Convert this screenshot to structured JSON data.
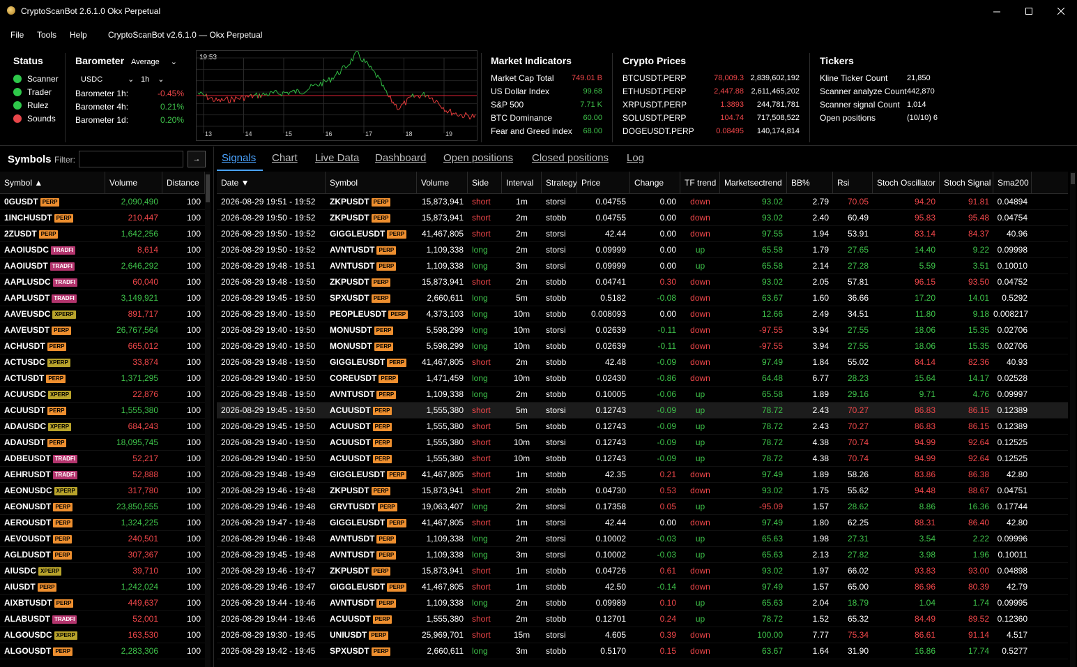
{
  "window": {
    "title": "CryptoScanBot 2.6.1.0 Okx Perpetual"
  },
  "menu": {
    "items": [
      "File",
      "Tools",
      "Help"
    ],
    "subtitle": "CryptoScanBot v2.6.1.0 — Okx Perpetual"
  },
  "status": {
    "title": "Status",
    "items": [
      {
        "label": "Scanner",
        "color": "#2ec84a"
      },
      {
        "label": "Trader",
        "color": "#2ec84a"
      },
      {
        "label": "Rulez",
        "color": "#2ec84a"
      },
      {
        "label": "Sounds",
        "color": "#e8464a"
      }
    ]
  },
  "barometer": {
    "title": "Barometer",
    "mode": "Average",
    "quote": "USDC",
    "interval": "1h",
    "rows": [
      {
        "label": "Barometer 1h:",
        "value": "-0.45%",
        "color": "red"
      },
      {
        "label": "Barometer 4h:",
        "value": "0.21%",
        "color": "green"
      },
      {
        "label": "Barometer 1d:",
        "value": "0.20%",
        "color": "green"
      }
    ]
  },
  "spark": {
    "time": "19:53",
    "days": [
      "13",
      "14",
      "15",
      "16",
      "17",
      "18",
      "19"
    ]
  },
  "market": {
    "title": "Market Indicators",
    "rows": [
      {
        "label": "Market Cap Total",
        "value": "749.01 B",
        "color": "red"
      },
      {
        "label": "US Dollar Index",
        "value": "99.68",
        "color": "green"
      },
      {
        "label": "S&P 500",
        "value": "7.71 K",
        "color": "green"
      },
      {
        "label": "BTC Dominance",
        "value": "60.00",
        "color": "green"
      },
      {
        "label": "Fear and Greed index",
        "value": "68.00",
        "color": "green"
      }
    ]
  },
  "prices": {
    "title": "Crypto Prices",
    "rows": [
      {
        "symbol": "BTCUSDT.PERP",
        "price": "78,009.3",
        "color": "red",
        "volume": "2,839,602,192"
      },
      {
        "symbol": "ETHUSDT.PERP",
        "price": "2,447.88",
        "color": "red",
        "volume": "2,611,465,202"
      },
      {
        "symbol": "XRPUSDT.PERP",
        "price": "1.3893",
        "color": "red",
        "volume": "244,781,781"
      },
      {
        "symbol": "SOLUSDT.PERP",
        "price": "104.74",
        "color": "red",
        "volume": "717,508,522"
      },
      {
        "symbol": "DOGEUSDT.PERP",
        "price": "0.08495",
        "color": "red",
        "volume": "140,174,814"
      }
    ]
  },
  "tickers": {
    "title": "Tickers",
    "rows": [
      {
        "label": "Kline Ticker Count",
        "value": "21,850"
      },
      {
        "label": "Scanner analyze Count",
        "value": "442,870"
      },
      {
        "label": "Scanner signal Count",
        "value": "1,014"
      },
      {
        "label": "Open positions",
        "value": "(10/10) 6"
      }
    ]
  },
  "symbols": {
    "title": "Symbols",
    "filter_label": "Filter:",
    "filter_value": "",
    "filter_button": "→",
    "headers": [
      "Symbol ▲",
      "Volume",
      "Distance"
    ],
    "rows": [
      [
        "0GUSDT",
        "PERP",
        "2,090,490",
        "green",
        "100"
      ],
      [
        "1INCHUSDT",
        "PERP",
        "210,447",
        "red",
        "100"
      ],
      [
        "2ZUSDT",
        "PERP",
        "1,642,256",
        "green",
        "100"
      ],
      [
        "AAOIUSDC",
        "TRADFI",
        "8,614",
        "red",
        "100"
      ],
      [
        "AAOIUSDT",
        "TRADFI",
        "2,646,292",
        "green",
        "100"
      ],
      [
        "AAPLUSDC",
        "TRADFI",
        "60,040",
        "red",
        "100"
      ],
      [
        "AAPLUSDT",
        "TRADFI",
        "3,149,921",
        "green",
        "100"
      ],
      [
        "AAVEUSDC",
        "XPERP",
        "891,717",
        "red",
        "100"
      ],
      [
        "AAVEUSDT",
        "PERP",
        "26,767,564",
        "green",
        "100"
      ],
      [
        "ACHUSDT",
        "PERP",
        "665,012",
        "red",
        "100"
      ],
      [
        "ACTUSDC",
        "XPERP",
        "33,874",
        "red",
        "100"
      ],
      [
        "ACTUSDT",
        "PERP",
        "1,371,295",
        "green",
        "100"
      ],
      [
        "ACUUSDC",
        "XPERP",
        "22,876",
        "red",
        "100"
      ],
      [
        "ACUUSDT",
        "PERP",
        "1,555,380",
        "green",
        "100"
      ],
      [
        "ADAUSDC",
        "XPERP",
        "684,243",
        "red",
        "100"
      ],
      [
        "ADAUSDT",
        "PERP",
        "18,095,745",
        "green",
        "100"
      ],
      [
        "ADBEUSDT",
        "TRADFI",
        "52,217",
        "red",
        "100"
      ],
      [
        "AEHRUSDT",
        "TRADFI",
        "52,888",
        "red",
        "100"
      ],
      [
        "AEONUSDC",
        "XPERP",
        "317,780",
        "red",
        "100"
      ],
      [
        "AEONUSDT",
        "PERP",
        "23,850,555",
        "green",
        "100"
      ],
      [
        "AEROUSDT",
        "PERP",
        "1,324,225",
        "green",
        "100"
      ],
      [
        "AEVOUSDT",
        "PERP",
        "240,501",
        "red",
        "100"
      ],
      [
        "AGLDUSDT",
        "PERP",
        "307,367",
        "red",
        "100"
      ],
      [
        "AIUSDC",
        "XPERP",
        "39,710",
        "red",
        "100"
      ],
      [
        "AIUSDT",
        "PERP",
        "1,242,024",
        "green",
        "100"
      ],
      [
        "AIXBTUSDT",
        "PERP",
        "449,637",
        "red",
        "100"
      ],
      [
        "ALABUSDT",
        "TRADFI",
        "52,001",
        "red",
        "100"
      ],
      [
        "ALGOUSDC",
        "XPERP",
        "163,530",
        "red",
        "100"
      ],
      [
        "ALGOUSDT",
        "PERP",
        "2,283,306",
        "green",
        "100"
      ]
    ]
  },
  "tabs": [
    "Signals",
    "Chart",
    "Live Data",
    "Dashboard",
    "Open positions",
    "Closed positions",
    "Log"
  ],
  "signals": {
    "headers": [
      "Date ▼",
      "Symbol",
      "Volume",
      "Side",
      "Interval",
      "Strategy",
      "Price",
      "Change",
      "TF trend",
      "Marketsectrend",
      "BB%",
      "Rsi",
      "Stoch Oscillator",
      "Stoch Signal",
      "Sma200"
    ],
    "rows": [
      [
        "2026-08-29 19:51 - 19:52",
        "ZKPUSDT",
        "15,873,941",
        "short",
        "1m",
        "storsi",
        "0.04755",
        "0.00",
        "down",
        "93.02",
        "2.79",
        "70.05",
        "94.20",
        "91.81",
        "0.04894"
      ],
      [
        "2026-08-29 19:50 - 19:52",
        "ZKPUSDT",
        "15,873,941",
        "short",
        "2m",
        "stobb",
        "0.04755",
        "0.00",
        "down",
        "93.02",
        "2.40",
        "60.49",
        "95.83",
        "95.48",
        "0.04754"
      ],
      [
        "2026-08-29 19:50 - 19:52",
        "GIGGLEUSDT",
        "41,467,805",
        "short",
        "2m",
        "storsi",
        "42.44",
        "0.00",
        "down",
        "97.55",
        "1.94",
        "53.91",
        "83.14",
        "84.37",
        "40.96"
      ],
      [
        "2026-08-29 19:50 - 19:52",
        "AVNTUSDT",
        "1,109,338",
        "long",
        "2m",
        "storsi",
        "0.09999",
        "0.00",
        "up",
        "65.58",
        "1.79",
        "27.65",
        "14.40",
        "9.22",
        "0.09998"
      ],
      [
        "2026-08-29 19:48 - 19:51",
        "AVNTUSDT",
        "1,109,338",
        "long",
        "3m",
        "storsi",
        "0.09999",
        "0.00",
        "up",
        "65.58",
        "2.14",
        "27.28",
        "5.59",
        "3.51",
        "0.10010"
      ],
      [
        "2026-08-29 19:48 - 19:50",
        "ZKPUSDT",
        "15,873,941",
        "short",
        "2m",
        "stobb",
        "0.04741",
        "0.30",
        "down",
        "93.02",
        "2.05",
        "57.81",
        "96.15",
        "93.50",
        "0.04752"
      ],
      [
        "2026-08-29 19:45 - 19:50",
        "SPXUSDT",
        "2,660,611",
        "long",
        "5m",
        "stobb",
        "0.5182",
        "-0.08",
        "down",
        "63.67",
        "1.60",
        "36.66",
        "17.20",
        "14.01",
        "0.5292"
      ],
      [
        "2026-08-29 19:40 - 19:50",
        "PEOPLEUSDT",
        "4,373,103",
        "long",
        "10m",
        "stobb",
        "0.008093",
        "0.00",
        "down",
        "12.66",
        "2.49",
        "34.51",
        "11.80",
        "9.18",
        "0.008217"
      ],
      [
        "2026-08-29 19:40 - 19:50",
        "MONUSDT",
        "5,598,299",
        "long",
        "10m",
        "storsi",
        "0.02639",
        "-0.11",
        "down",
        "-97.55",
        "3.94",
        "27.55",
        "18.06",
        "15.35",
        "0.02706"
      ],
      [
        "2026-08-29 19:40 - 19:50",
        "MONUSDT",
        "5,598,299",
        "long",
        "10m",
        "stobb",
        "0.02639",
        "-0.11",
        "down",
        "-97.55",
        "3.94",
        "27.55",
        "18.06",
        "15.35",
        "0.02706"
      ],
      [
        "2026-08-29 19:48 - 19:50",
        "GIGGLEUSDT",
        "41,467,805",
        "short",
        "2m",
        "stobb",
        "42.48",
        "-0.09",
        "down",
        "97.49",
        "1.84",
        "55.02",
        "84.14",
        "82.36",
        "40.93"
      ],
      [
        "2026-08-29 19:40 - 19:50",
        "COREUSDT",
        "1,471,459",
        "long",
        "10m",
        "stobb",
        "0.02430",
        "-0.86",
        "down",
        "64.48",
        "6.77",
        "28.23",
        "15.64",
        "14.17",
        "0.02528"
      ],
      [
        "2026-08-29 19:48 - 19:50",
        "AVNTUSDT",
        "1,109,338",
        "long",
        "2m",
        "stobb",
        "0.10005",
        "-0.06",
        "up",
        "65.58",
        "1.89",
        "29.16",
        "9.71",
        "4.76",
        "0.09997"
      ],
      [
        "2026-08-29 19:45 - 19:50",
        "ACUUSDT",
        "1,555,380",
        "short",
        "5m",
        "storsi",
        "0.12743",
        "-0.09",
        "up",
        "78.72",
        "2.43",
        "70.27",
        "86.83",
        "86.15",
        "0.12389"
      ],
      [
        "2026-08-29 19:45 - 19:50",
        "ACUUSDT",
        "1,555,380",
        "short",
        "5m",
        "stobb",
        "0.12743",
        "-0.09",
        "up",
        "78.72",
        "2.43",
        "70.27",
        "86.83",
        "86.15",
        "0.12389"
      ],
      [
        "2026-08-29 19:40 - 19:50",
        "ACUUSDT",
        "1,555,380",
        "short",
        "10m",
        "storsi",
        "0.12743",
        "-0.09",
        "up",
        "78.72",
        "4.38",
        "70.74",
        "94.99",
        "92.64",
        "0.12525"
      ],
      [
        "2026-08-29 19:40 - 19:50",
        "ACUUSDT",
        "1,555,380",
        "short",
        "10m",
        "stobb",
        "0.12743",
        "-0.09",
        "up",
        "78.72",
        "4.38",
        "70.74",
        "94.99",
        "92.64",
        "0.12525"
      ],
      [
        "2026-08-29 19:48 - 19:49",
        "GIGGLEUSDT",
        "41,467,805",
        "short",
        "1m",
        "stobb",
        "42.35",
        "0.21",
        "down",
        "97.49",
        "1.89",
        "58.26",
        "83.86",
        "86.38",
        "42.80"
      ],
      [
        "2026-08-29 19:46 - 19:48",
        "ZKPUSDT",
        "15,873,941",
        "short",
        "2m",
        "stobb",
        "0.04730",
        "0.53",
        "down",
        "93.02",
        "1.75",
        "55.62",
        "94.48",
        "88.67",
        "0.04751"
      ],
      [
        "2026-08-29 19:46 - 19:48",
        "GRVTUSDT",
        "19,063,407",
        "long",
        "2m",
        "storsi",
        "0.17358",
        "0.05",
        "up",
        "-95.09",
        "1.57",
        "28.62",
        "8.86",
        "16.36",
        "0.17744"
      ],
      [
        "2026-08-29 19:47 - 19:48",
        "GIGGLEUSDT",
        "41,467,805",
        "short",
        "1m",
        "storsi",
        "42.44",
        "0.00",
        "down",
        "97.49",
        "1.80",
        "62.25",
        "88.31",
        "86.40",
        "42.80"
      ],
      [
        "2026-08-29 19:46 - 19:48",
        "AVNTUSDT",
        "1,109,338",
        "long",
        "2m",
        "storsi",
        "0.10002",
        "-0.03",
        "up",
        "65.63",
        "1.98",
        "27.31",
        "3.54",
        "2.22",
        "0.09996"
      ],
      [
        "2026-08-29 19:45 - 19:48",
        "AVNTUSDT",
        "1,109,338",
        "long",
        "3m",
        "storsi",
        "0.10002",
        "-0.03",
        "up",
        "65.63",
        "2.13",
        "27.82",
        "3.98",
        "1.96",
        "0.10011"
      ],
      [
        "2026-08-29 19:46 - 19:47",
        "ZKPUSDT",
        "15,873,941",
        "short",
        "1m",
        "stobb",
        "0.04726",
        "0.61",
        "down",
        "93.02",
        "1.97",
        "66.02",
        "93.83",
        "93.00",
        "0.04898"
      ],
      [
        "2026-08-29 19:46 - 19:47",
        "GIGGLEUSDT",
        "41,467,805",
        "short",
        "1m",
        "stobb",
        "42.50",
        "-0.14",
        "down",
        "97.49",
        "1.57",
        "65.00",
        "86.96",
        "80.39",
        "42.79"
      ],
      [
        "2026-08-29 19:44 - 19:46",
        "AVNTUSDT",
        "1,109,338",
        "long",
        "2m",
        "stobb",
        "0.09989",
        "0.10",
        "up",
        "65.63",
        "2.04",
        "18.79",
        "1.04",
        "1.74",
        "0.09995"
      ],
      [
        "2026-08-29 19:44 - 19:46",
        "ACUUSDT",
        "1,555,380",
        "short",
        "2m",
        "stobb",
        "0.12701",
        "0.24",
        "up",
        "78.72",
        "1.52",
        "65.32",
        "84.49",
        "89.52",
        "0.12360"
      ],
      [
        "2026-08-29 19:30 - 19:45",
        "UNIUSDT",
        "25,969,701",
        "short",
        "15m",
        "storsi",
        "4.605",
        "0.39",
        "down",
        "100.00",
        "7.77",
        "75.34",
        "86.61",
        "91.14",
        "4.517"
      ],
      [
        "2026-08-29 19:42 - 19:45",
        "SPXUSDT",
        "2,660,611",
        "long",
        "3m",
        "stobb",
        "0.5170",
        "0.15",
        "down",
        "63.67",
        "1.64",
        "31.90",
        "16.86",
        "17.74",
        "0.5277"
      ]
    ]
  }
}
